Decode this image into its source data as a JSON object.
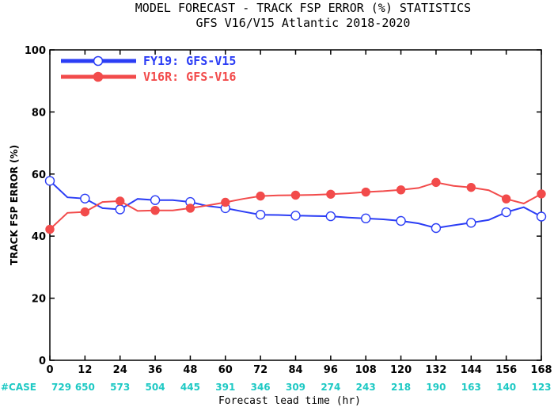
{
  "chart_data": {
    "type": "line",
    "title": "MODEL FORECAST - TRACK FSP ERROR (%) STATISTICS",
    "subtitle": "GFS V16/V15 Atlantic 2018-2020",
    "xlabel": "Forecast lead time (hr)",
    "ylabel": "TRACK FSP ERROR (%)",
    "xlim": [
      0,
      168
    ],
    "ylim": [
      0,
      100
    ],
    "x_ticks": [
      0,
      12,
      24,
      36,
      48,
      60,
      72,
      84,
      96,
      108,
      120,
      132,
      144,
      156,
      168
    ],
    "y_ticks": [
      0,
      20,
      40,
      60,
      80,
      100
    ],
    "x": [
      0,
      6,
      12,
      18,
      24,
      30,
      36,
      42,
      48,
      54,
      60,
      66,
      72,
      78,
      84,
      90,
      96,
      102,
      108,
      114,
      120,
      126,
      132,
      138,
      144,
      150,
      156,
      162,
      168
    ],
    "series": [
      {
        "name": "FY19: GFS-V15",
        "color": "#2b3df5",
        "marker": "open-circle",
        "values": [
          57.8,
          52.5,
          52.1,
          49.0,
          48.6,
          52.0,
          51.6,
          51.6,
          51.0,
          49.7,
          49.0,
          47.9,
          46.9,
          46.8,
          46.6,
          46.5,
          46.4,
          46.0,
          45.7,
          45.4,
          44.9,
          44.1,
          42.6,
          43.5,
          44.3,
          45.2,
          47.7,
          49.3,
          46.3
        ]
      },
      {
        "name": "V16R: GFS-V16",
        "color": "#f24b4b",
        "marker": "filled-circle",
        "values": [
          42.2,
          47.5,
          47.8,
          51.0,
          51.3,
          48.1,
          48.3,
          48.3,
          49.0,
          49.9,
          50.9,
          52.0,
          52.9,
          53.1,
          53.2,
          53.3,
          53.5,
          53.8,
          54.2,
          54.5,
          54.9,
          55.5,
          57.3,
          56.2,
          55.7,
          54.8,
          52.0,
          50.5,
          53.6
        ]
      }
    ],
    "case_label": "#CASE",
    "case_counts": [
      "729",
      "650",
      "573",
      "504",
      "445",
      "391",
      "346",
      "309",
      "274",
      "243",
      "218",
      "190",
      "163",
      "140",
      "123"
    ],
    "case_color": "#1ec9c4",
    "legend_position": "top-left",
    "grid": false
  }
}
